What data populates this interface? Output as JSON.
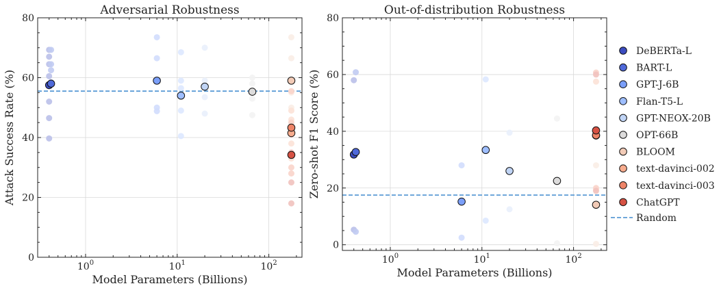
{
  "chart_data": [
    {
      "type": "scatter",
      "title": "Adversarial Robustness",
      "xlabel": "Model Parameters (Billions)",
      "ylabel": "Attack Success Rate (%)",
      "xscale": "log",
      "xlim": [
        0.3,
        230
      ],
      "ylim": [
        0,
        80
      ],
      "yticks": [
        0,
        20,
        40,
        60,
        80
      ],
      "xticks": [
        {
          "value": 1,
          "base": "10",
          "exp": "0"
        },
        {
          "value": 10,
          "base": "10",
          "exp": "1"
        },
        {
          "value": 100,
          "base": "10",
          "exp": "2"
        }
      ],
      "grid": true,
      "baseline": {
        "name": "Random",
        "y": 55.5
      },
      "series": [
        {
          "name": "DeBERTa-L",
          "color": "#3b4cc0",
          "x": 0.4,
          "y": 57.5,
          "tasks": [
            [
              0.4,
              69.3
            ],
            [
              0.4,
              67
            ],
            [
              0.4,
              64.5
            ],
            [
              0.4,
              60.5
            ],
            [
              0.4,
              52
            ],
            [
              0.4,
              46.5
            ],
            [
              0.4,
              39.7
            ]
          ]
        },
        {
          "name": "BART-L",
          "color": "#4f69d9",
          "x": 0.42,
          "y": 58,
          "tasks": [
            [
              0.42,
              69.3
            ],
            [
              0.42,
              64.5
            ],
            [
              0.42,
              62.5
            ],
            [
              0.42,
              58.5
            ]
          ]
        },
        {
          "name": "GPT-J-6B",
          "color": "#7b9ff9",
          "x": 6,
          "y": 59,
          "tasks": [
            [
              6,
              73.5
            ],
            [
              6,
              66.5
            ],
            [
              6,
              50
            ],
            [
              6,
              48.8
            ]
          ]
        },
        {
          "name": "Flan-T5-L",
          "color": "#9ebeff",
          "x": 11,
          "y": 54,
          "tasks": [
            [
              11,
              68.5
            ],
            [
              11,
              59
            ],
            [
              11,
              56.5
            ],
            [
              11,
              49
            ],
            [
              11,
              40.5
            ]
          ]
        },
        {
          "name": "GPT-NEOX-20B",
          "color": "#c0d4f5",
          "x": 20,
          "y": 57,
          "tasks": [
            [
              20,
              70
            ],
            [
              20,
              59
            ],
            [
              20,
              53.5
            ],
            [
              20,
              48
            ]
          ]
        },
        {
          "name": "OPT-66B",
          "color": "#dddcdc",
          "x": 66,
          "y": 55.3,
          "tasks": [
            [
              66,
              60
            ],
            [
              66,
              58
            ],
            [
              66,
              53
            ],
            [
              66,
              47.5
            ]
          ]
        },
        {
          "name": "BLOOM",
          "color": "#f2cbb7",
          "x": 176,
          "y": 59,
          "tasks": [
            [
              176,
              73.5
            ],
            [
              176,
              66.5
            ],
            [
              176,
              55
            ],
            [
              176,
              50
            ]
          ]
        },
        {
          "name": "text-davinci-002",
          "color": "#f7ac8e",
          "x": 176,
          "y": 41.5,
          "tasks": [
            [
              176,
              49
            ],
            [
              176,
              46
            ],
            [
              176,
              38
            ],
            [
              176,
              33
            ]
          ]
        },
        {
          "name": "text-davinci-003",
          "color": "#ee8468",
          "x": 176,
          "y": 43.3,
          "tasks": [
            [
              176,
              55.5
            ],
            [
              176,
              45
            ],
            [
              176,
              30
            ],
            [
              176,
              28
            ]
          ]
        },
        {
          "name": "ChatGPT",
          "color": "#d65244",
          "x": 176,
          "y": 34.2,
          "tasks": [
            [
              176,
              41
            ],
            [
              176,
              35
            ],
            [
              176,
              25
            ],
            [
              176,
              18
            ]
          ]
        }
      ]
    },
    {
      "type": "scatter",
      "title": "Out-of-distribution Robustness",
      "xlabel": "Model Parameters (Billions)",
      "ylabel": "Zero-shot F1 Score (%)",
      "xscale": "log",
      "xlim": [
        0.3,
        230
      ],
      "ylim": [
        -2,
        80
      ],
      "yticks": [
        0,
        20,
        40,
        60,
        80
      ],
      "xticks": [
        {
          "value": 1,
          "base": "10",
          "exp": "0"
        },
        {
          "value": 10,
          "base": "10",
          "exp": "1"
        },
        {
          "value": 100,
          "base": "10",
          "exp": "2"
        }
      ],
      "grid": true,
      "baseline": {
        "name": "Random",
        "y": 17.5
      },
      "series": [
        {
          "name": "DeBERTa-L",
          "color": "#3b4cc0",
          "x": 0.4,
          "y": 31.8,
          "tasks": [
            [
              0.4,
              58
            ],
            [
              0.4,
              5.3
            ]
          ]
        },
        {
          "name": "BART-L",
          "color": "#4f69d9",
          "x": 0.42,
          "y": 32.7,
          "tasks": [
            [
              0.42,
              60.8
            ],
            [
              0.42,
              4.6
            ]
          ]
        },
        {
          "name": "GPT-J-6B",
          "color": "#7b9ff9",
          "x": 6,
          "y": 15.2,
          "tasks": [
            [
              6,
              28
            ],
            [
              6,
              2.5
            ]
          ]
        },
        {
          "name": "Flan-T5-L",
          "color": "#9ebeff",
          "x": 11,
          "y": 33.4,
          "tasks": [
            [
              11,
              58.3
            ],
            [
              11,
              8.5
            ]
          ]
        },
        {
          "name": "GPT-NEOX-20B",
          "color": "#c0d4f5",
          "x": 20,
          "y": 26,
          "tasks": [
            [
              20,
              39.5
            ],
            [
              20,
              12.5
            ]
          ]
        },
        {
          "name": "OPT-66B",
          "color": "#dddcdc",
          "x": 66,
          "y": 22.5,
          "tasks": [
            [
              66,
              44.5
            ],
            [
              66,
              0.5
            ]
          ]
        },
        {
          "name": "BLOOM",
          "color": "#f2cbb7",
          "x": 176,
          "y": 14.1,
          "tasks": [
            [
              176,
              28
            ],
            [
              176,
              0.3
            ]
          ]
        },
        {
          "name": "text-davinci-002",
          "color": "#f7ac8e",
          "x": 176,
          "y": 38.5,
          "tasks": [
            [
              176,
              57.5
            ],
            [
              176,
              19.5
            ]
          ]
        },
        {
          "name": "text-davinci-003",
          "color": "#ee8468",
          "x": 176,
          "y": 38.6,
          "tasks": [
            [
              176,
              60.7
            ],
            [
              176,
              20
            ]
          ]
        },
        {
          "name": "ChatGPT",
          "color": "#d65244",
          "x": 176,
          "y": 40.3,
          "tasks": [
            [
              176,
              60
            ],
            [
              176,
              19
            ]
          ]
        }
      ]
    }
  ],
  "legend": {
    "placement": "right",
    "items": [
      "DeBERTa-L",
      "BART-L",
      "GPT-J-6B",
      "Flan-T5-L",
      "GPT-NEOX-20B",
      "OPT-66B",
      "BLOOM",
      "text-davinci-002",
      "text-davinci-003",
      "ChatGPT"
    ],
    "baseline_label": "Random",
    "baseline_color": "#5b9bd5"
  }
}
